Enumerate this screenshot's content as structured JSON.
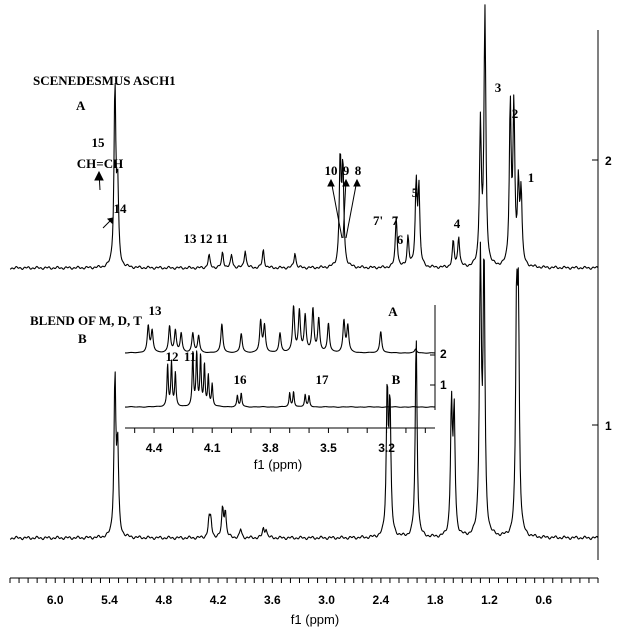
{
  "chart_data": [
    {
      "type": "line",
      "xlabel": "f1 (ppm)",
      "x_reversed": true,
      "xlim": [
        6.5,
        0.0
      ],
      "x_ticks": [
        "6.0",
        "5.4",
        "4.8",
        "4.2",
        "3.6",
        "3.0",
        "2.4",
        "1.8",
        "1.2",
        "0.6"
      ],
      "right_axis_ticks": [
        "2",
        "1"
      ],
      "series": [
        {
          "name": "A",
          "title": "SCENEDESMUS ASCH1",
          "peaks_ppm": [
            [
              5.34,
              0.7
            ],
            [
              5.31,
              0.3
            ],
            [
              4.3,
              0.05
            ],
            [
              4.15,
              0.06
            ],
            [
              4.05,
              0.05
            ],
            [
              3.9,
              0.07
            ],
            [
              3.7,
              0.07
            ],
            [
              3.35,
              0.06
            ],
            [
              2.85,
              0.42
            ],
            [
              2.82,
              0.38
            ],
            [
              2.23,
              0.2
            ],
            [
              2.1,
              0.12
            ],
            [
              2.01,
              0.32
            ],
            [
              1.98,
              0.3
            ],
            [
              1.6,
              0.1
            ],
            [
              1.54,
              0.12
            ],
            [
              1.3,
              0.55
            ],
            [
              1.25,
              1.0
            ],
            [
              0.97,
              0.62
            ],
            [
              0.93,
              0.6
            ],
            [
              0.88,
              0.3
            ],
            [
              0.85,
              0.28
            ]
          ],
          "labels": [
            "15",
            "CH=CH",
            "14",
            "13",
            "12",
            "11",
            "10",
            "9",
            "8",
            "7'",
            "7",
            "6",
            "5",
            "4",
            "3",
            "2",
            "1"
          ]
        },
        {
          "name": "B",
          "title": "BLEND OF M, D, T",
          "peaks_ppm": [
            [
              5.34,
              0.55
            ],
            [
              5.31,
              0.3
            ],
            [
              4.3,
              0.06
            ],
            [
              4.28,
              0.06
            ],
            [
              4.15,
              0.1
            ],
            [
              4.12,
              0.09
            ],
            [
              3.95,
              0.03
            ],
            [
              3.7,
              0.03
            ],
            [
              3.67,
              0.03
            ],
            [
              2.33,
              0.5
            ],
            [
              2.3,
              0.45
            ],
            [
              2.01,
              0.7
            ],
            [
              1.62,
              0.45
            ],
            [
              1.59,
              0.42
            ],
            [
              1.3,
              1.0
            ],
            [
              1.26,
              0.95
            ],
            [
              0.9,
              0.75
            ],
            [
              0.88,
              0.72
            ]
          ],
          "labels": []
        }
      ]
    },
    {
      "type": "line",
      "inset": true,
      "xlabel": "f1 (ppm)",
      "x_reversed": true,
      "xlim": [
        4.55,
        2.95
      ],
      "x_ticks": [
        "4.4",
        "4.1",
        "3.8",
        "3.5",
        "3.2"
      ],
      "right_axis_ticks": [
        "2",
        "1"
      ],
      "series": [
        {
          "name": "A",
          "peaks_ppm": [
            [
              4.43,
              0.55
            ],
            [
              4.41,
              0.45
            ],
            [
              4.32,
              0.55
            ],
            [
              4.29,
              0.45
            ],
            [
              4.26,
              0.4
            ],
            [
              4.2,
              0.4
            ],
            [
              4.17,
              0.35
            ],
            [
              4.05,
              0.6
            ],
            [
              3.95,
              0.4
            ],
            [
              3.85,
              0.65
            ],
            [
              3.83,
              0.55
            ],
            [
              3.75,
              0.4
            ],
            [
              3.68,
              0.95
            ],
            [
              3.65,
              0.85
            ],
            [
              3.62,
              0.75
            ],
            [
              3.58,
              0.9
            ],
            [
              3.55,
              0.7
            ],
            [
              3.5,
              0.6
            ],
            [
              3.42,
              0.65
            ],
            [
              3.4,
              0.55
            ],
            [
              3.23,
              0.45
            ],
            [
              3.05,
              0.08
            ]
          ],
          "labels": [
            "13",
            "A"
          ]
        },
        {
          "name": "B",
          "peaks_ppm": [
            [
              4.33,
              0.75
            ],
            [
              4.31,
              0.8
            ],
            [
              4.29,
              0.6
            ],
            [
              4.2,
              0.95
            ],
            [
              4.18,
              1.0
            ],
            [
              4.16,
              0.9
            ],
            [
              4.14,
              0.75
            ],
            [
              4.12,
              0.55
            ],
            [
              4.1,
              0.4
            ],
            [
              3.97,
              0.2
            ],
            [
              3.95,
              0.25
            ],
            [
              3.7,
              0.25
            ],
            [
              3.68,
              0.28
            ],
            [
              3.62,
              0.22
            ],
            [
              3.6,
              0.2
            ]
          ],
          "labels": [
            "12",
            "11",
            "16",
            "17",
            "B"
          ]
        }
      ]
    }
  ]
}
